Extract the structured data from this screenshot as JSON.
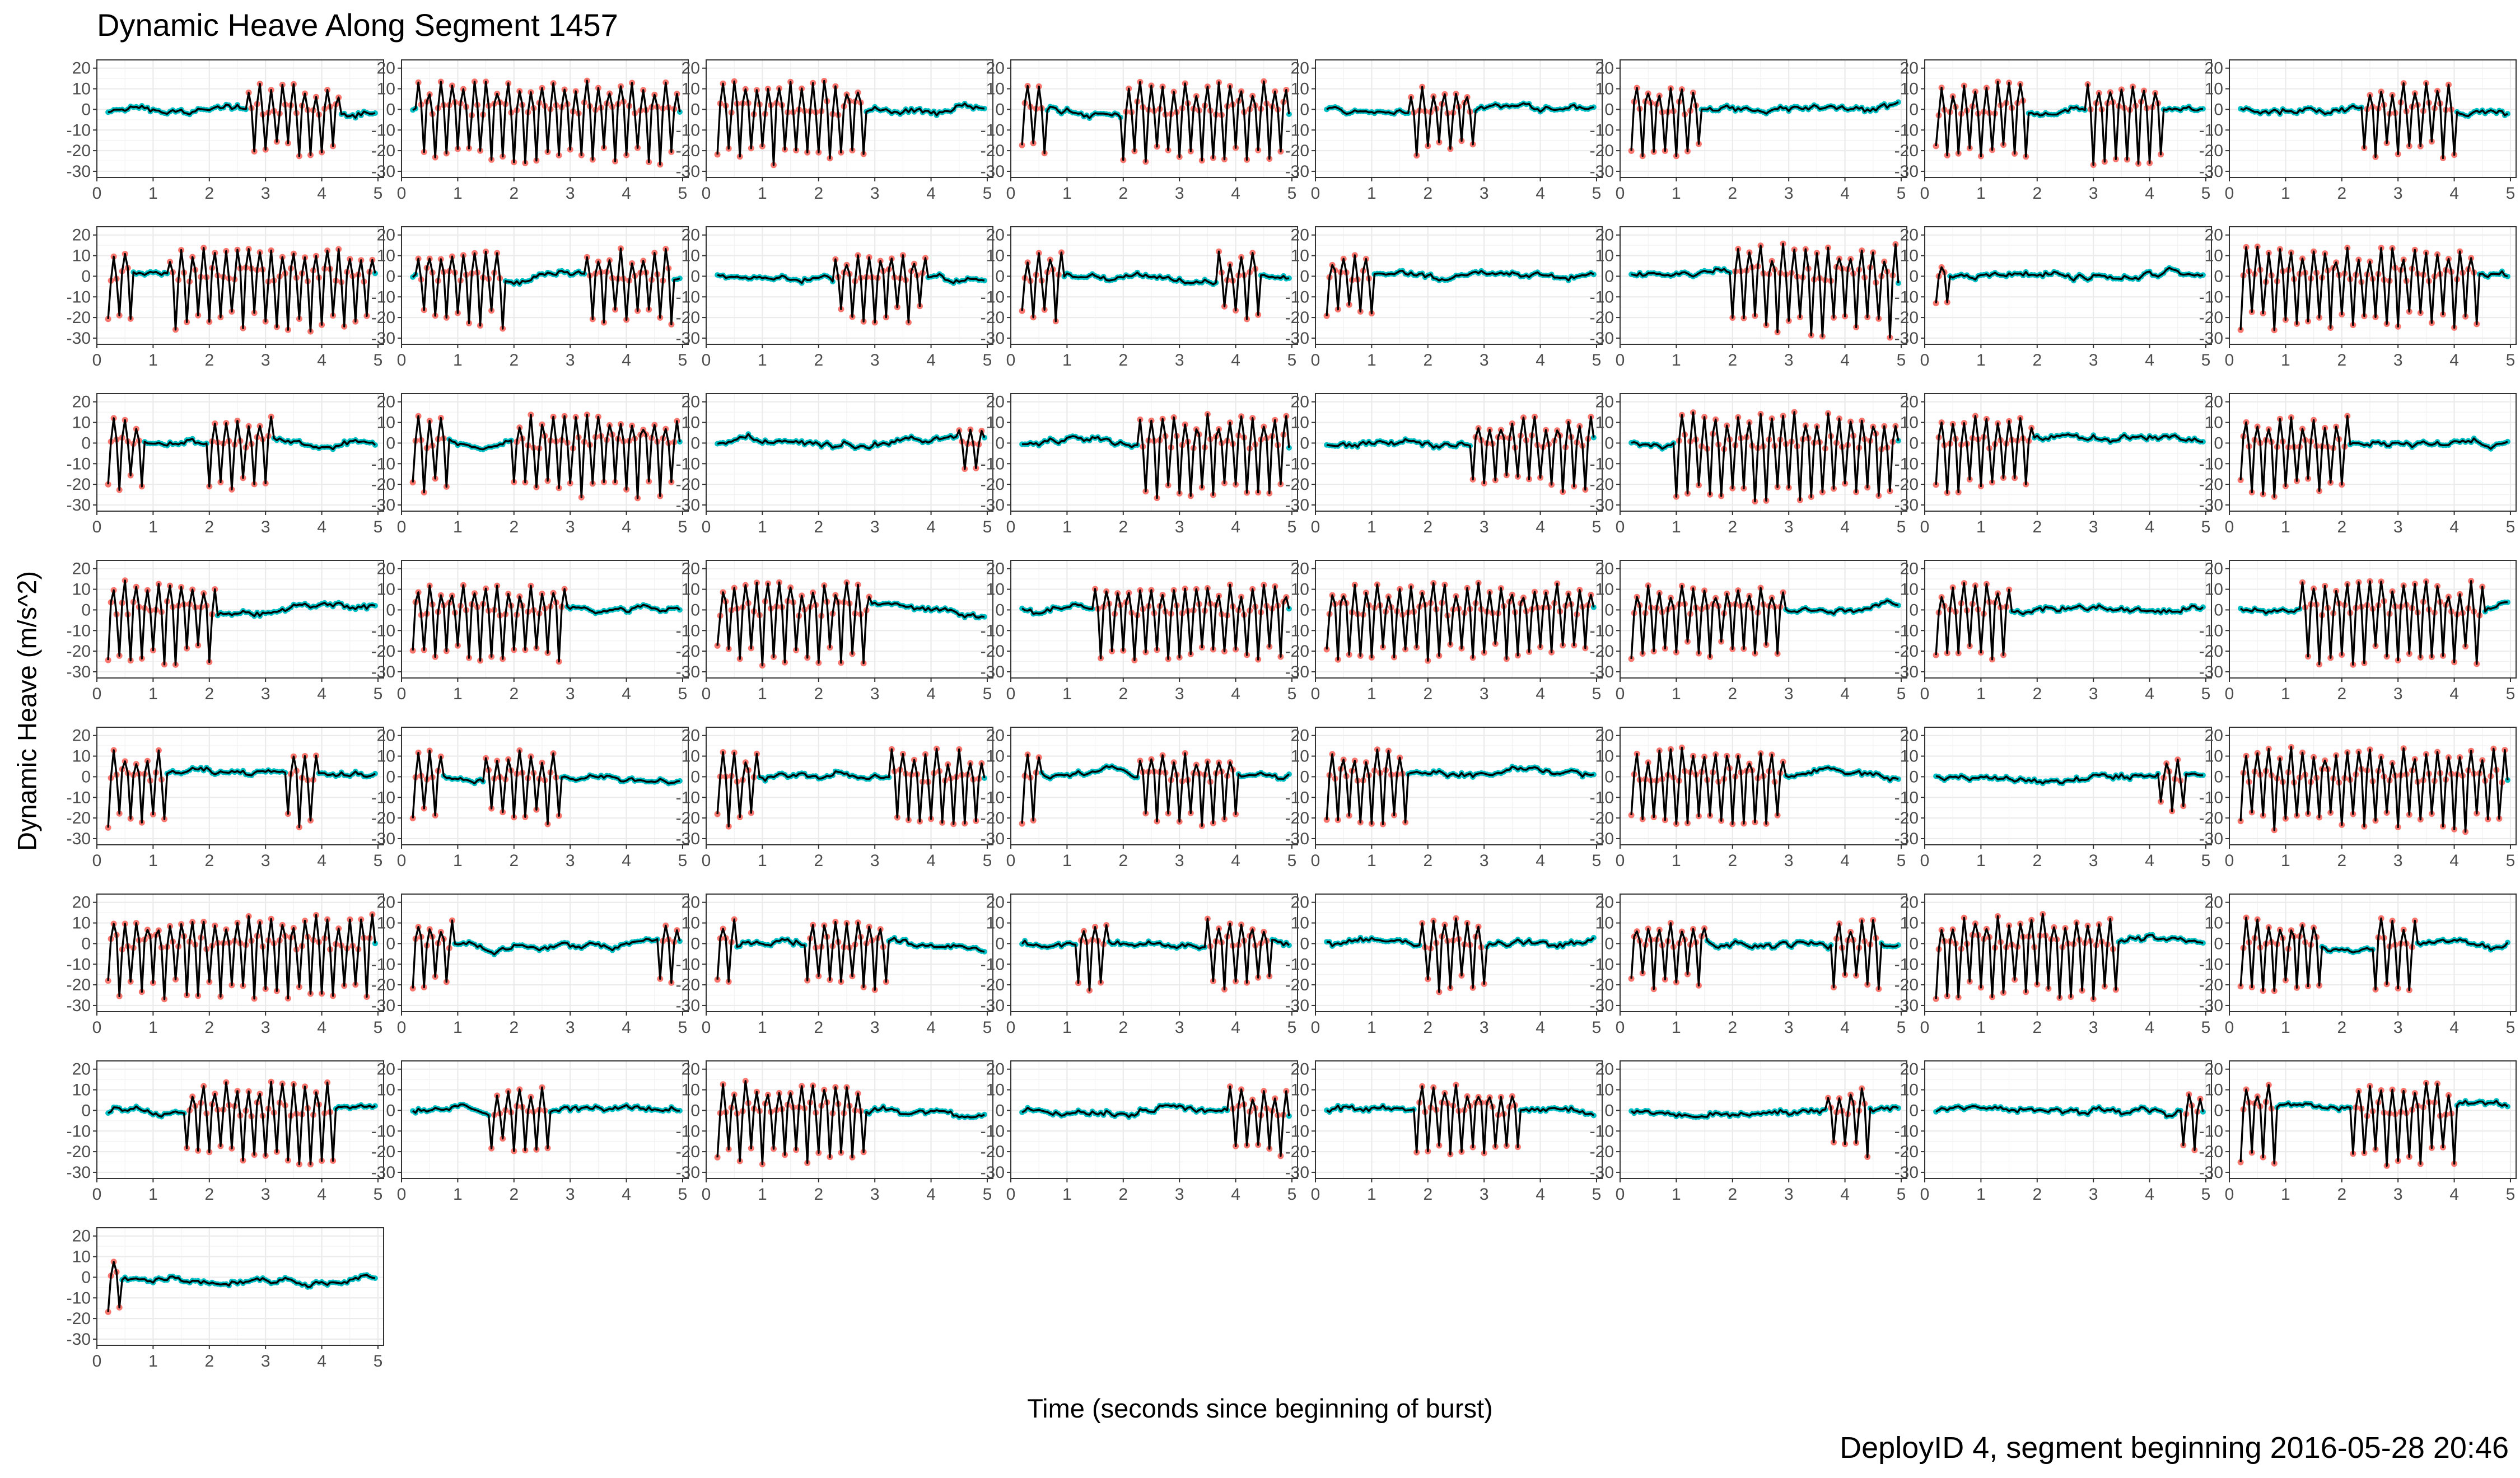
{
  "chart_data": {
    "type": "line",
    "title": "Dynamic Heave Along Segment 1457",
    "xlabel": "Time (seconds since beginning of burst)",
    "ylabel": "Dynamic Heave (m/s^2)",
    "caption": "DeployID 4, segment beginning 2016-05-28 20:46",
    "facet_layout": {
      "columns": 8,
      "rows": 8,
      "panels": 57
    },
    "xlim": [
      0,
      5.1
    ],
    "ylim": [
      -33,
      24
    ],
    "x_ticks": [
      "0",
      "1",
      "2",
      "3",
      "4",
      "5"
    ],
    "y_ticks": [
      "20",
      "10",
      "0",
      "-10",
      "-20",
      "-30"
    ],
    "x_tick_values": [
      0,
      1,
      2,
      3,
      4,
      5
    ],
    "y_tick_values": [
      20,
      10,
      0,
      -10,
      -20,
      -30
    ],
    "grid": true,
    "sampling": {
      "start": 0.2,
      "end": 4.95,
      "step": 0.05
    },
    "colors": {
      "line": "#000000",
      "highlight": "#F8766D",
      "background": "#00BFC4",
      "panel_grid": "#ebebeb",
      "panel_border": "#333333"
    },
    "panels": [
      {
        "panel": 1,
        "bursts": [
          [
            2.7,
            4.3
          ]
        ],
        "base_amplitude": 2.5,
        "peak_amplitude": 16
      },
      {
        "panel": 2,
        "bursts": [
          [
            0.3,
            4.9
          ]
        ],
        "base_amplitude": 2.5,
        "peak_amplitude": 18
      },
      {
        "panel": 3,
        "bursts": [
          [
            0.2,
            2.8
          ]
        ],
        "base_amplitude": 2.5,
        "peak_amplitude": 18
      },
      {
        "panel": 4,
        "bursts": [
          [
            0.2,
            0.6
          ],
          [
            2.0,
            4.9
          ]
        ],
        "base_amplitude": 2.5,
        "peak_amplitude": 17
      },
      {
        "panel": 5,
        "bursts": [
          [
            1.7,
            2.8
          ]
        ],
        "base_amplitude": 2.5,
        "peak_amplitude": 15
      },
      {
        "panel": 6,
        "bursts": [
          [
            0.2,
            1.4
          ]
        ],
        "base_amplitude": 2.5,
        "peak_amplitude": 17
      },
      {
        "panel": 7,
        "bursts": [
          [
            0.2,
            1.8
          ],
          [
            2.9,
            4.2
          ]
        ],
        "base_amplitude": 2.5,
        "peak_amplitude": 18
      },
      {
        "panel": 8,
        "bursts": [
          [
            2.4,
            4.0
          ]
        ],
        "base_amplitude": 2.5,
        "peak_amplitude": 16
      },
      {
        "panel": 9,
        "bursts": [
          [
            0.2,
            0.6
          ],
          [
            1.3,
            4.9
          ]
        ],
        "base_amplitude": 2.5,
        "peak_amplitude": 18
      },
      {
        "panel": 10,
        "bursts": [
          [
            0.3,
            1.8
          ],
          [
            3.3,
            4.8
          ]
        ],
        "base_amplitude": 2.5,
        "peak_amplitude": 17
      },
      {
        "panel": 11,
        "bursts": [
          [
            2.3,
            3.9
          ]
        ],
        "base_amplitude": 2.5,
        "peak_amplitude": 15
      },
      {
        "panel": 12,
        "bursts": [
          [
            0.2,
            0.9
          ],
          [
            3.7,
            4.4
          ]
        ],
        "base_amplitude": 2.5,
        "peak_amplitude": 15
      },
      {
        "panel": 13,
        "bursts": [
          [
            0.2,
            1.0
          ]
        ],
        "base_amplitude": 2.5,
        "peak_amplitude": 13
      },
      {
        "panel": 14,
        "bursts": [
          [
            2.0,
            4.9
          ]
        ],
        "base_amplitude": 2.5,
        "peak_amplitude": 20
      },
      {
        "panel": 15,
        "bursts": [
          [
            0.2,
            0.4
          ]
        ],
        "base_amplitude": 2.5,
        "peak_amplitude": 12
      },
      {
        "panel": 16,
        "bursts": [
          [
            0.2,
            4.4
          ]
        ],
        "base_amplitude": 2.5,
        "peak_amplitude": 18
      },
      {
        "panel": 17,
        "bursts": [
          [
            0.2,
            0.8
          ],
          [
            2.0,
            3.1
          ]
        ],
        "base_amplitude": 2.5,
        "peak_amplitude": 16
      },
      {
        "panel": 18,
        "bursts": [
          [
            0.2,
            0.8
          ],
          [
            2.0,
            4.9
          ]
        ],
        "base_amplitude": 2.5,
        "peak_amplitude": 18
      },
      {
        "panel": 19,
        "bursts": [
          [
            4.5,
            4.9
          ]
        ],
        "base_amplitude": 3,
        "peak_amplitude": 9
      },
      {
        "panel": 20,
        "bursts": [
          [
            2.3,
            4.9
          ]
        ],
        "base_amplitude": 2.5,
        "peak_amplitude": 18
      },
      {
        "panel": 21,
        "bursts": [
          [
            2.8,
            4.9
          ]
        ],
        "base_amplitude": 2.5,
        "peak_amplitude": 16
      },
      {
        "panel": 22,
        "bursts": [
          [
            1.0,
            4.9
          ]
        ],
        "base_amplitude": 2.5,
        "peak_amplitude": 20
      },
      {
        "panel": 23,
        "bursts": [
          [
            0.2,
            1.9
          ]
        ],
        "base_amplitude": 2.5,
        "peak_amplitude": 17
      },
      {
        "panel": 24,
        "bursts": [
          [
            0.2,
            2.1
          ]
        ],
        "base_amplitude": 2.5,
        "peak_amplitude": 18
      },
      {
        "panel": 25,
        "bursts": [
          [
            0.2,
            2.1
          ]
        ],
        "base_amplitude": 2.5,
        "peak_amplitude": 18
      },
      {
        "panel": 26,
        "bursts": [
          [
            0.2,
            2.9
          ]
        ],
        "base_amplitude": 2.5,
        "peak_amplitude": 17
      },
      {
        "panel": 27,
        "bursts": [
          [
            0.2,
            2.9
          ]
        ],
        "base_amplitude": 2.5,
        "peak_amplitude": 18
      },
      {
        "panel": 28,
        "bursts": [
          [
            1.5,
            4.9
          ]
        ],
        "base_amplitude": 2.5,
        "peak_amplitude": 17
      },
      {
        "panel": 29,
        "bursts": [
          [
            0.2,
            4.9
          ]
        ],
        "base_amplitude": 2.5,
        "peak_amplitude": 17
      },
      {
        "panel": 30,
        "bursts": [
          [
            0.2,
            2.9
          ]
        ],
        "base_amplitude": 2.5,
        "peak_amplitude": 16
      },
      {
        "panel": 31,
        "bursts": [
          [
            0.2,
            1.5
          ]
        ],
        "base_amplitude": 2.5,
        "peak_amplitude": 17
      },
      {
        "panel": 32,
        "bursts": [
          [
            1.3,
            4.5
          ]
        ],
        "base_amplitude": 2.5,
        "peak_amplitude": 18
      },
      {
        "panel": 33,
        "bursts": [
          [
            0.2,
            1.2
          ],
          [
            3.4,
            3.9
          ]
        ],
        "base_amplitude": 2.5,
        "peak_amplitude": 17
      },
      {
        "panel": 34,
        "bursts": [
          [
            0.2,
            0.7
          ],
          [
            1.5,
            2.8
          ]
        ],
        "base_amplitude": 2.5,
        "peak_amplitude": 16
      },
      {
        "panel": 35,
        "bursts": [
          [
            0.2,
            0.9
          ],
          [
            3.3,
            4.9
          ]
        ],
        "base_amplitude": 2.5,
        "peak_amplitude": 17
      },
      {
        "panel": 36,
        "bursts": [
          [
            0.2,
            0.5
          ],
          [
            2.3,
            4.0
          ]
        ],
        "base_amplitude": 2.5,
        "peak_amplitude": 16
      },
      {
        "panel": 37,
        "bursts": [
          [
            0.2,
            1.6
          ]
        ],
        "base_amplitude": 2.5,
        "peak_amplitude": 17
      },
      {
        "panel": 38,
        "bursts": [
          [
            0.2,
            2.9
          ]
        ],
        "base_amplitude": 2.5,
        "peak_amplitude": 18
      },
      {
        "panel": 39,
        "bursts": [
          [
            4.2,
            4.6
          ]
        ],
        "base_amplitude": 2.5,
        "peak_amplitude": 12
      },
      {
        "panel": 40,
        "bursts": [
          [
            0.2,
            4.9
          ]
        ],
        "base_amplitude": 2.5,
        "peak_amplitude": 18
      },
      {
        "panel": 41,
        "bursts": [
          [
            0.2,
            4.9
          ]
        ],
        "base_amplitude": 2.5,
        "peak_amplitude": 18
      },
      {
        "panel": 42,
        "bursts": [
          [
            0.2,
            0.9
          ],
          [
            4.6,
            4.9
          ]
        ],
        "base_amplitude": 2.5,
        "peak_amplitude": 16
      },
      {
        "panel": 43,
        "bursts": [
          [
            0.2,
            0.5
          ],
          [
            1.8,
            3.2
          ]
        ],
        "base_amplitude": 2.5,
        "peak_amplitude": 15
      },
      {
        "panel": 44,
        "bursts": [
          [
            1.2,
            1.7
          ],
          [
            3.5,
            4.6
          ]
        ],
        "base_amplitude": 2.5,
        "peak_amplitude": 16
      },
      {
        "panel": 45,
        "bursts": [
          [
            1.9,
            3.0
          ]
        ],
        "base_amplitude": 2.5,
        "peak_amplitude": 16
      },
      {
        "panel": 46,
        "bursts": [
          [
            0.2,
            1.5
          ],
          [
            3.8,
            4.6
          ]
        ],
        "base_amplitude": 2.5,
        "peak_amplitude": 15
      },
      {
        "panel": 47,
        "bursts": [
          [
            0.2,
            3.4
          ]
        ],
        "base_amplitude": 2.5,
        "peak_amplitude": 18
      },
      {
        "panel": 48,
        "bursts": [
          [
            0.2,
            1.6
          ],
          [
            2.6,
            3.3
          ]
        ],
        "base_amplitude": 2.5,
        "peak_amplitude": 16
      },
      {
        "panel": 49,
        "bursts": [
          [
            1.6,
            4.2
          ]
        ],
        "base_amplitude": 2.5,
        "peak_amplitude": 18
      },
      {
        "panel": 50,
        "bursts": [
          [
            1.6,
            2.6
          ]
        ],
        "base_amplitude": 2.5,
        "peak_amplitude": 14
      },
      {
        "panel": 51,
        "bursts": [
          [
            0.2,
            2.8
          ]
        ],
        "base_amplitude": 2.5,
        "peak_amplitude": 18
      },
      {
        "panel": 52,
        "bursts": [
          [
            3.9,
            4.9
          ]
        ],
        "base_amplitude": 2.5,
        "peak_amplitude": 15
      },
      {
        "panel": 53,
        "bursts": [
          [
            1.8,
            3.6
          ]
        ],
        "base_amplitude": 2.5,
        "peak_amplitude": 17
      },
      {
        "panel": 54,
        "bursts": [
          [
            3.7,
            4.4
          ]
        ],
        "base_amplitude": 2.5,
        "peak_amplitude": 16
      },
      {
        "panel": 55,
        "bursts": [
          [
            4.6,
            4.9
          ]
        ],
        "base_amplitude": 2.5,
        "peak_amplitude": 15
      },
      {
        "panel": 56,
        "bursts": [
          [
            0.2,
            0.8
          ],
          [
            2.2,
            4.0
          ]
        ],
        "base_amplitude": 2.5,
        "peak_amplitude": 18
      },
      {
        "panel": 57,
        "bursts": [
          [
            0.2,
            0.4
          ]
        ],
        "base_amplitude": 2.5,
        "peak_amplitude": 14
      }
    ]
  }
}
